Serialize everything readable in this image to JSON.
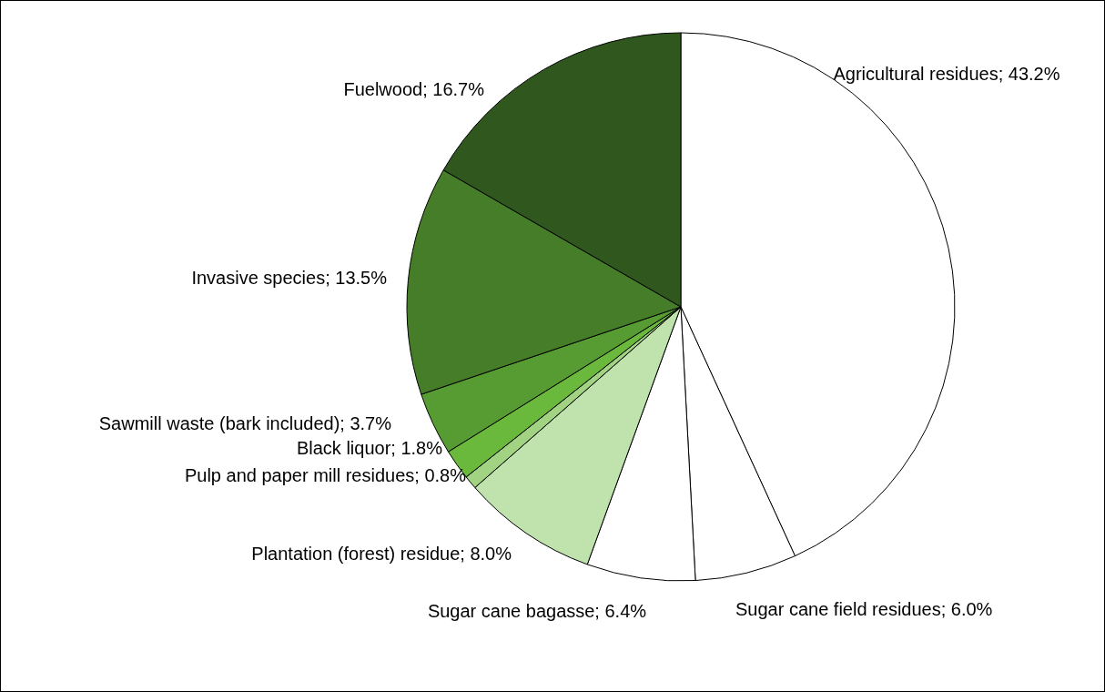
{
  "chart_data": {
    "type": "pie",
    "categories": [
      "Agricultural residues",
      "Sugar cane field residues",
      "Sugar cane bagasse",
      "Plantation (forest) residue",
      "Pulp and paper mill residues",
      "Black liquor",
      "Sawmill waste (bark included)",
      "Invasive species",
      "Fuelwood"
    ],
    "values": [
      43.2,
      6.0,
      6.4,
      8.0,
      0.8,
      1.8,
      3.7,
      13.5,
      16.7
    ],
    "value_labels": [
      "43.2%",
      "6.0%",
      "6.4%",
      "8.0%",
      "0.8%",
      "1.8%",
      "3.7%",
      "13.5%",
      "16.7%"
    ],
    "colors": [
      "#ffffff",
      "#ffffff",
      "#ffffff",
      "#c0e3ae",
      "#a2d383",
      "#6ab93d",
      "#569c33",
      "#467d29",
      "#2f571e"
    ]
  }
}
